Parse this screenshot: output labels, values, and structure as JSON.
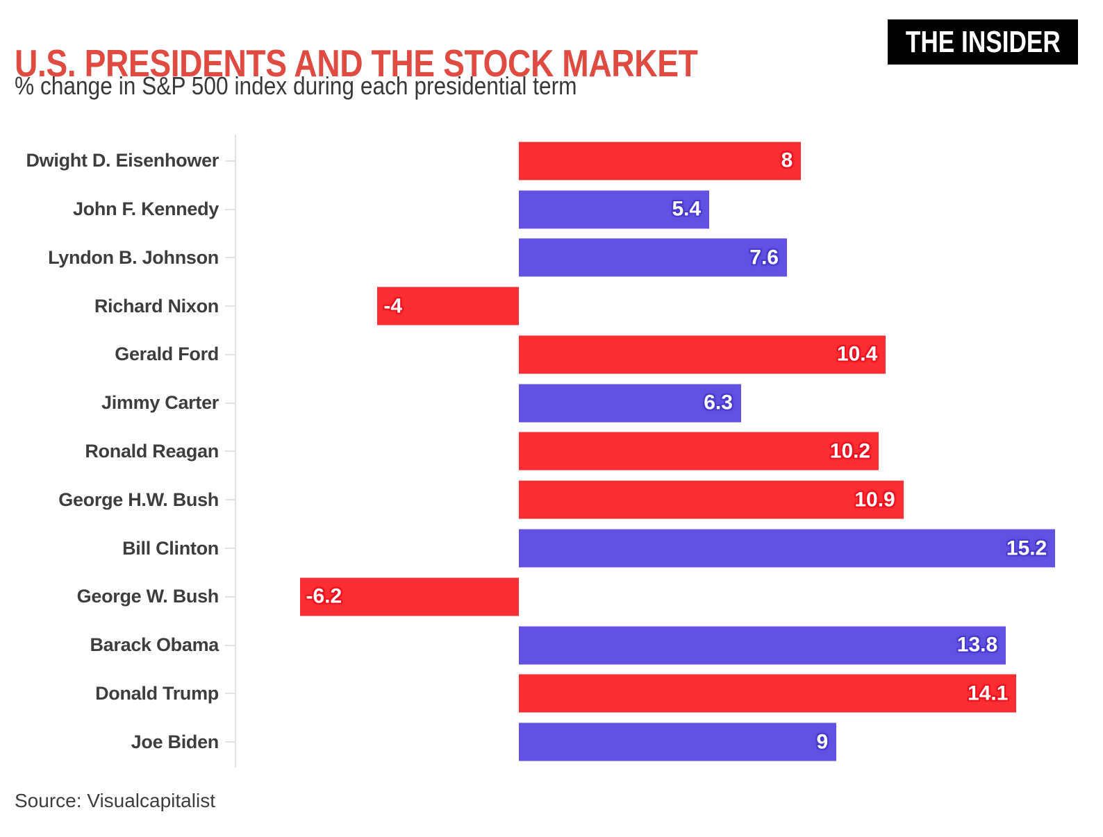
{
  "header": {
    "title": "U.S. PRESIDENTS AND THE STOCK MARKET",
    "subtitle": "% change in S&P 500 index during each presidential term",
    "logo_text": "THE INSIDER"
  },
  "footer": {
    "source": "Source: Visualcapitalist"
  },
  "colors": {
    "title_red": "#E04B41",
    "republican_bar": "#FB2F33",
    "democrat_bar": "#6152E1",
    "republican_halo": "#ED101E",
    "democrat_halo": "#4739CE",
    "axis_gray": "#E2E2E2",
    "label_text": "#3D3D3D",
    "logo_bg": "#000000",
    "logo_fg": "#FFFFFF"
  },
  "chart_data": {
    "type": "bar",
    "orientation": "horizontal",
    "title": "U.S. PRESIDENTS AND THE STOCK MARKET",
    "subtitle": "% change in S&P 500 index during each presidential term",
    "xlabel": "",
    "ylabel": "",
    "xlim": [
      -8,
      16
    ],
    "grid": false,
    "legend": "none",
    "categories": [
      "Dwight D. Eisenhower",
      "John F. Kennedy",
      "Lyndon B. Johnson",
      "Richard Nixon",
      "Gerald Ford",
      "Jimmy Carter",
      "Ronald Reagan",
      "George H.W. Bush",
      "Bill Clinton",
      "George W. Bush",
      "Barack Obama",
      "Donald Trump",
      "Joe Biden"
    ],
    "values": [
      8,
      5.4,
      7.6,
      -4,
      10.4,
      6.3,
      10.2,
      10.9,
      15.2,
      -6.2,
      13.8,
      14.1,
      9
    ],
    "value_labels": [
      "8",
      "5.4",
      "7.6",
      "-4",
      "10.4",
      "6.3",
      "10.2",
      "10.9",
      "15.2",
      "-6.2",
      "13.8",
      "14.1",
      "9"
    ],
    "party": [
      "R",
      "D",
      "D",
      "R",
      "R",
      "D",
      "R",
      "R",
      "D",
      "R",
      "D",
      "R",
      "D"
    ],
    "bar_color_by_party": {
      "R": "#FB2F33",
      "D": "#6152E1"
    },
    "halo_color_by_party": {
      "R": "#ED101E",
      "D": "#4739CE"
    }
  }
}
